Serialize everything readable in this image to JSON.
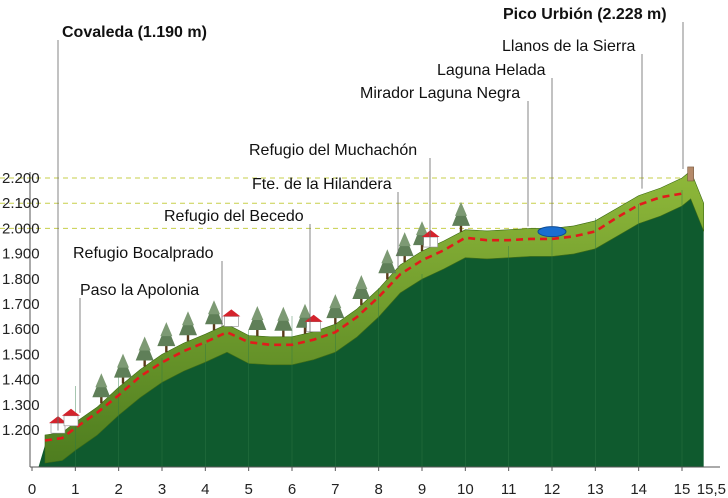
{
  "chart_data": {
    "type": "area",
    "title": "",
    "xlabel": "",
    "ylabel": "",
    "xlim": [
      0,
      15.5
    ],
    "ylim": [
      1100,
      2240
    ],
    "x_ticks": [
      0,
      1,
      2,
      3,
      4,
      5,
      6,
      7,
      8,
      9,
      10,
      11,
      12,
      13,
      14,
      15
    ],
    "x_tick_labels": [
      "0",
      "1",
      "2",
      "3",
      "4",
      "5",
      "6",
      "7",
      "8",
      "9",
      "10",
      "11",
      "12",
      "13",
      "14",
      "15"
    ],
    "x_end_label": "15,5",
    "y_ticks": [
      1200,
      1300,
      1400,
      1500,
      1600,
      1700,
      1800,
      1900,
      2000,
      2100,
      2200
    ],
    "y_tick_labels": [
      "1.200",
      "1.300",
      "1.400",
      "1.500",
      "1.600",
      "1.700",
      "1.800",
      "1.900",
      "2.000",
      "2.100",
      "2.200"
    ],
    "grid": false,
    "series": [
      {
        "x": [
          0.3,
          0.7,
          1.0,
          1.5,
          2.0,
          2.5,
          3.0,
          3.5,
          4.0,
          4.5,
          5.0,
          5.5,
          6.0,
          6.5,
          7.0,
          7.5,
          8.0,
          8.5,
          9.0,
          9.5,
          10.0,
          10.5,
          11.0,
          11.5,
          12.0,
          12.5,
          13.0,
          13.5,
          14.0,
          14.5,
          15.0,
          15.2
        ],
        "y": [
          1180,
          1190,
          1230,
          1290,
          1370,
          1440,
          1500,
          1545,
          1580,
          1620,
          1575,
          1570,
          1570,
          1590,
          1620,
          1680,
          1760,
          1855,
          1910,
          1950,
          1995,
          1990,
          1995,
          2000,
          2000,
          2010,
          2030,
          2080,
          2130,
          2160,
          2200,
          2228
        ]
      }
    ],
    "route": {
      "x": [
        0.3,
        0.7,
        1.0,
        1.5,
        2.0,
        2.5,
        3.0,
        3.5,
        4.0,
        4.5,
        5.0,
        5.5,
        6.0,
        6.5,
        7.0,
        7.5,
        8.0,
        8.5,
        9.0,
        9.5,
        10.0,
        10.5,
        11.0,
        11.5,
        12.0,
        12.5,
        13.0,
        13.5,
        14.0,
        14.5,
        15.0
      ],
      "y": [
        1190,
        1200,
        1240,
        1300,
        1370,
        1445,
        1500,
        1545,
        1580,
        1620,
        1580,
        1570,
        1570,
        1590,
        1620,
        1680,
        1760,
        1850,
        1905,
        1945,
        1995,
        1985,
        1985,
        1990,
        1990,
        2000,
        2020,
        2075,
        2125,
        2155,
        2170
      ]
    },
    "points": [
      {
        "name": "Covaleda (1.190 m)",
        "x": 0.6,
        "y": 1190,
        "bold": true
      },
      {
        "name": "Paso la Apolonia",
        "x": 1.2,
        "y": 1260,
        "bold": false
      },
      {
        "name": "Refugio Bocalprado",
        "x": 4.5,
        "y": 1600,
        "bold": false
      },
      {
        "name": "Refugio del Becedo",
        "x": 6.5,
        "y": 1580,
        "bold": false
      },
      {
        "name": "Fte. de la Hilandera",
        "x": 8.5,
        "y": 1830,
        "bold": false
      },
      {
        "name": "Refugio del Muchachón",
        "x": 9.1,
        "y": 1920,
        "bold": false
      },
      {
        "name": "Mirador Laguna Negra",
        "x": 11.6,
        "y": 2000,
        "bold": false
      },
      {
        "name": "Laguna Helada",
        "x": 12.0,
        "y": 2000,
        "bold": false
      },
      {
        "name": "Llanos de la Sierra",
        "x": 14.2,
        "y": 2150,
        "bold": false
      },
      {
        "name": "Pico Urbión (2.228 m)",
        "x": 15.2,
        "y": 2228,
        "bold": true
      }
    ]
  },
  "colors": {
    "terrain": "#0f5a2e",
    "terrain_top": "#7ea62a",
    "route": "#e11b1b",
    "guide": "#c7cf4a",
    "axis": "#555555",
    "text": "#111111"
  },
  "icons": [
    "house-icon",
    "tree-icon",
    "lake-icon",
    "summit-marker-icon"
  ]
}
